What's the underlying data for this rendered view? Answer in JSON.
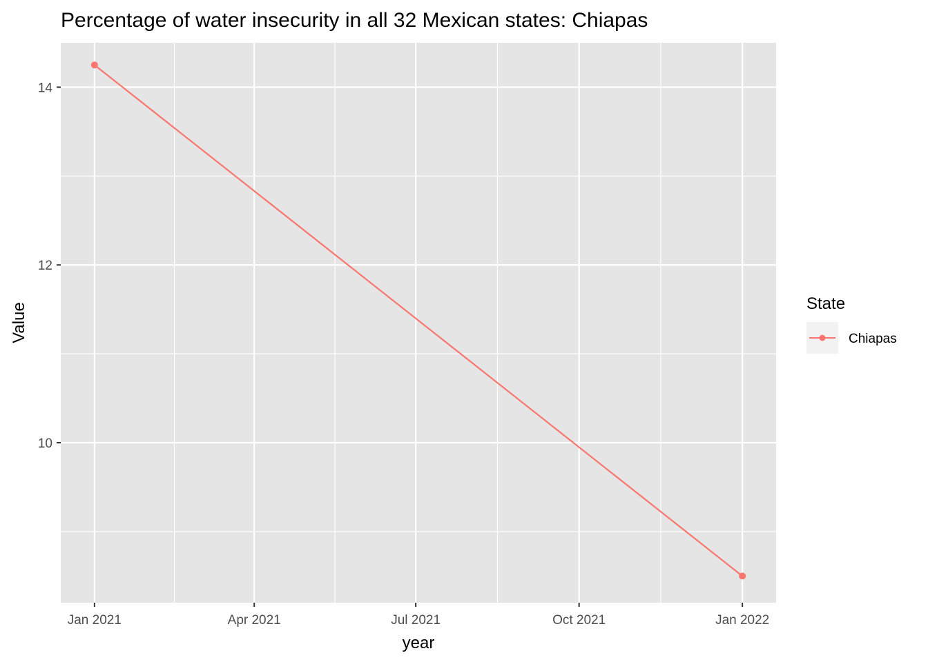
{
  "chart_data": {
    "type": "line",
    "title": "Percentage of water insecurity in all 32 Mexican states: Chiapas",
    "xlabel": "year",
    "ylabel": "Value",
    "x_ticks": [
      {
        "date": "2021-01-01",
        "label": "Jan 2021"
      },
      {
        "date": "2021-04-01",
        "label": "Apr 2021"
      },
      {
        "date": "2021-07-01",
        "label": "Jul 2021"
      },
      {
        "date": "2021-10-01",
        "label": "Oct 2021"
      },
      {
        "date": "2022-01-01",
        "label": "Jan 2022"
      }
    ],
    "y_ticks": [
      10,
      12,
      14
    ],
    "ylim": [
      8.2,
      14.5
    ],
    "xlim": [
      "2020-12-13",
      "2022-01-20"
    ],
    "grid": true,
    "legend": {
      "title": "State",
      "position": "right"
    },
    "series": [
      {
        "name": "Chiapas",
        "color": "#F8766D",
        "points": [
          {
            "x": "2021-01-01",
            "y": 14.25
          },
          {
            "x": "2022-01-01",
            "y": 8.5
          }
        ]
      }
    ]
  }
}
